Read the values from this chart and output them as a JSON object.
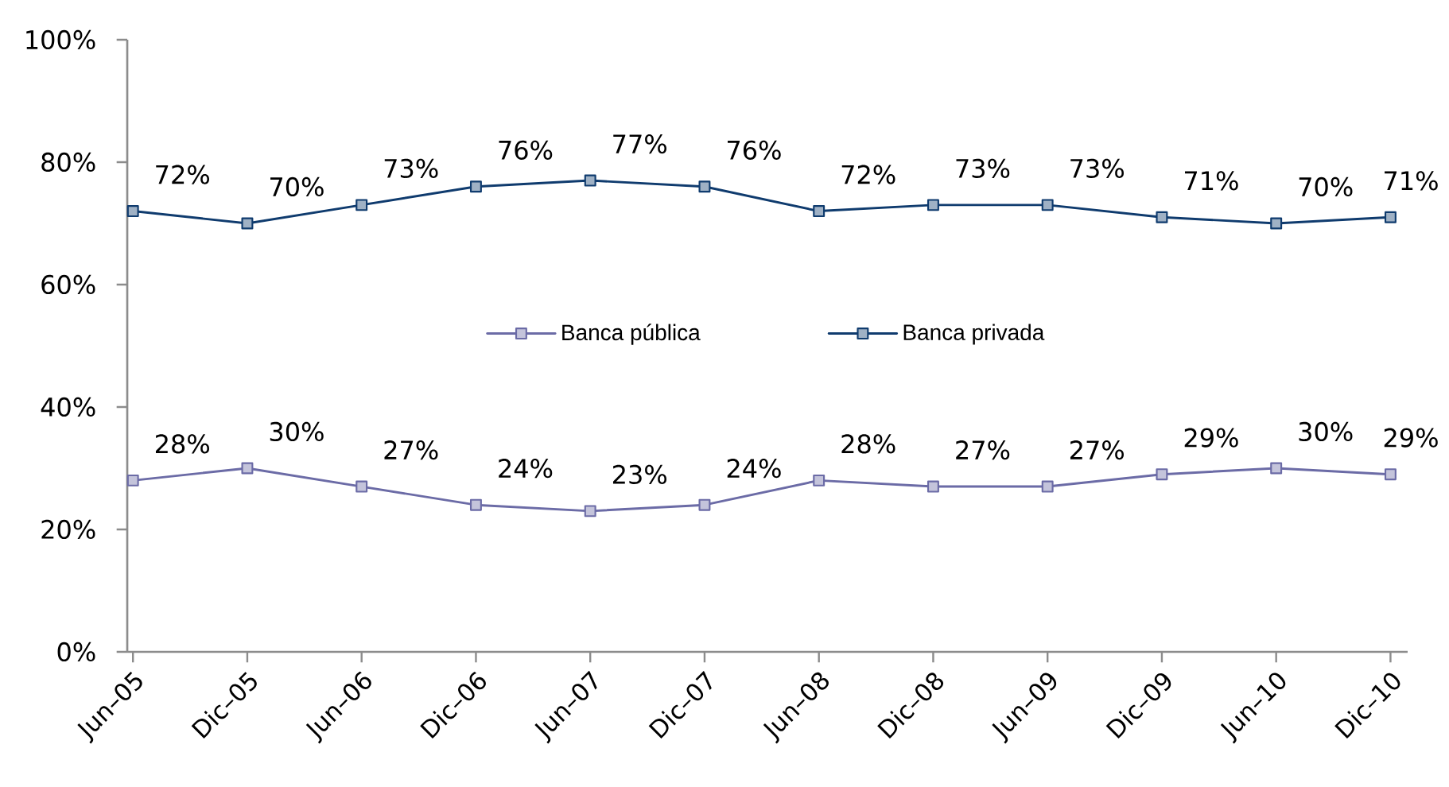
{
  "chart_data": {
    "type": "line",
    "categories": [
      "Jun–05",
      "Dic–05",
      "Jun–06",
      "Dic–06",
      "Jun–07",
      "Dic–07",
      "Jun–08",
      "Dic–08",
      "Jun–09",
      "Dic–09",
      "Jun–10",
      "Dic–10"
    ],
    "series": [
      {
        "name": "Banca pública",
        "color": "#6b6ba6",
        "values": [
          28,
          30,
          27,
          24,
          23,
          24,
          28,
          27,
          27,
          29,
          30,
          29
        ],
        "value_labels": [
          "28%",
          "30%",
          "27%",
          "24%",
          "23%",
          "24%",
          "28%",
          "27%",
          "27%",
          "29%",
          "30%",
          "29%"
        ]
      },
      {
        "name": "Banca privada",
        "color": "#0f3b6e",
        "values": [
          72,
          70,
          73,
          76,
          77,
          76,
          72,
          73,
          73,
          71,
          70,
          71
        ],
        "value_labels": [
          "72%",
          "70%",
          "73%",
          "76%",
          "77%",
          "76%",
          "72%",
          "73%",
          "73%",
          "71%",
          "70%",
          "71%"
        ]
      }
    ],
    "ylim": [
      0,
      100
    ],
    "yticks": [
      {
        "value": 0,
        "label": "0%"
      },
      {
        "value": 20,
        "label": "20%"
      },
      {
        "value": 40,
        "label": "40%"
      },
      {
        "value": 60,
        "label": "60%"
      },
      {
        "value": 80,
        "label": "80%"
      },
      {
        "value": 100,
        "label": "100%"
      }
    ],
    "legend": "center",
    "marker": "square",
    "line_style": "solid"
  }
}
